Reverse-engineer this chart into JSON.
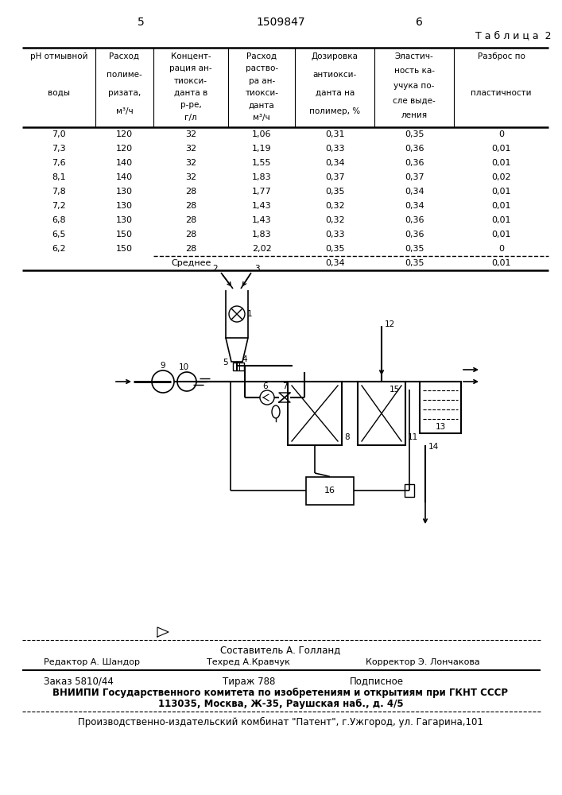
{
  "page_number_left": "5",
  "patent_number": "1509847",
  "page_number_right": "6",
  "table_label": "Т а б л и ц а  2",
  "headers": [
    "pH отмывной\nводы",
    "Расход\nполиме-\nризата,\nм³/ч",
    "Концент-\nрация ан-\nтиокси-\nданта в\nр-ре,\nг/л",
    "Расход\nраство-\nра ан-\nтиокси-\nданта\nм³/ч",
    "Дозировка\nантиокси-\nданта на\nполимер, %",
    "Эластич-\nность ка-\nучука по-\nсле выде-\nления",
    "Разброс по\nпластичности"
  ],
  "rows": [
    [
      "7,0",
      "120",
      "32",
      "1,06",
      "0,31",
      "0,35",
      "0"
    ],
    [
      "7,3",
      "120",
      "32",
      "1,19",
      "0,33",
      "0,36",
      "0,01"
    ],
    [
      "7,6",
      "140",
      "32",
      "1,55",
      "0,34",
      "0,36",
      "0,01"
    ],
    [
      "8,1",
      "140",
      "32",
      "1,83",
      "0,37",
      "0,37",
      "0,02"
    ],
    [
      "7,8",
      "130",
      "28",
      "1,77",
      "0,35",
      "0,34",
      "0,01"
    ],
    [
      "7,2",
      "130",
      "28",
      "1,43",
      "0,32",
      "0,34",
      "0,01"
    ],
    [
      "6,8",
      "130",
      "28",
      "1,43",
      "0,32",
      "0,36",
      "0,01"
    ],
    [
      "6,5",
      "150",
      "28",
      "1,83",
      "0,33",
      "0,36",
      "0,01"
    ],
    [
      "6,2",
      "150",
      "28",
      "2,02",
      "0,35",
      "0,35",
      "0"
    ]
  ],
  "sredneye_label": "Среднее",
  "sredneye_values": [
    "",
    "",
    "",
    "0,34",
    "0,35",
    "0,01"
  ],
  "footer_line1": "Составитель А. Голланд",
  "footer_editor": "Редактор А. Шандор",
  "footer_tech": "Техред А.Кравчук",
  "footer_corrector": "Корректор Э. Лончакова",
  "footer_order": "Заказ 5810/44",
  "footer_tiraj": "Тираж 788",
  "footer_podp": "Подписное",
  "footer_vniip1": "ВНИИПИ Государственного комитета по изобретениям и открытиям при ГКНТ СССР",
  "footer_vniip2": "113035, Москва, Ж-35, Раушская наб., д. 4/5",
  "footer_patent": "Производственно-издательский комбинат \"Патент\", г.Ужгород, ул. Гагарина,101",
  "bg_color": "#ffffff",
  "text_color": "#000000"
}
